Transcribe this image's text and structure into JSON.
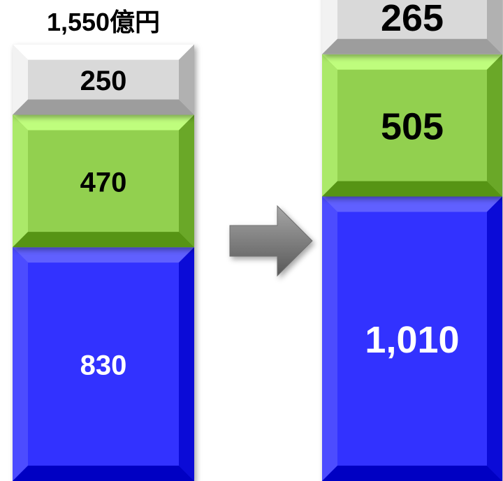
{
  "chart_data": {
    "type": "bar",
    "stacked": true,
    "categories": [
      "",
      ""
    ],
    "series": [
      {
        "values": [
          830,
          1010
        ],
        "color": "#3333ff",
        "value_labels": [
          "830",
          "1,010"
        ],
        "label_color": "#ffffff"
      },
      {
        "values": [
          470,
          505
        ],
        "color": "#92d050",
        "value_labels": [
          "470",
          "505"
        ],
        "label_color": "#000000"
      },
      {
        "values": [
          250,
          265
        ],
        "color": "#d9d9d9",
        "value_labels": [
          "250",
          "265"
        ],
        "label_color": "#000000"
      }
    ],
    "totals": [
      1550,
      1780
    ],
    "total_labels": [
      "1,550億円",
      ""
    ],
    "title": "",
    "xlabel": "",
    "ylabel": "",
    "arrow_between": true
  }
}
